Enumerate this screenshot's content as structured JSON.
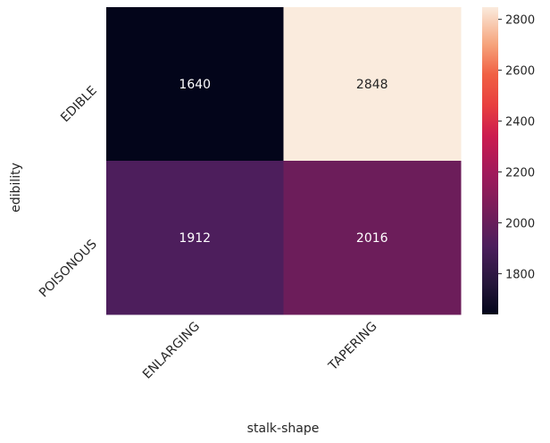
{
  "chart_data": {
    "type": "heatmap",
    "title": "",
    "xlabel": "stalk-shape",
    "ylabel": "edibility",
    "x_categories": [
      "ENLARGING",
      "TAPERING"
    ],
    "y_categories": [
      "EDIBLE",
      "POISONOUS"
    ],
    "values": [
      [
        1640,
        2848
      ],
      [
        1912,
        2016
      ]
    ],
    "colorscale": "rocket",
    "color_range": [
      1640,
      2848
    ],
    "colorbar_ticks": [
      1800,
      2000,
      2200,
      2400,
      2600,
      2800
    ],
    "tick_label_rotation_deg": 45,
    "grid": false,
    "legend": "colorbar-right"
  }
}
